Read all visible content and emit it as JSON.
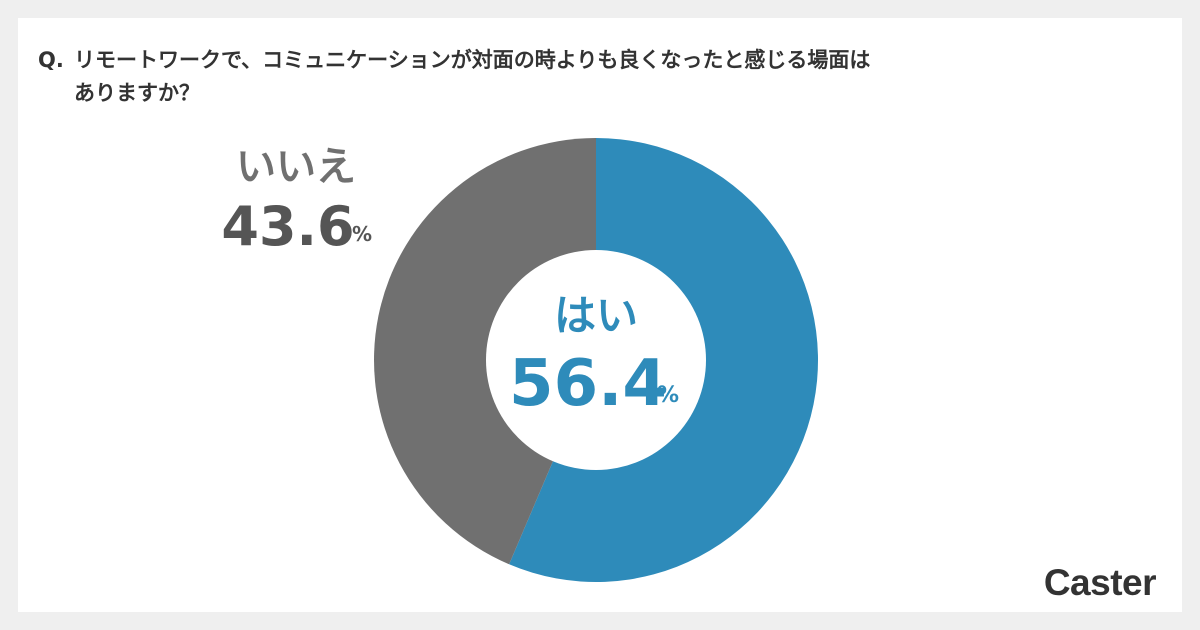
{
  "question": {
    "prefix": "Q.",
    "line1": "リモートワークで、コミュニケーションが対面の時よりも良くなったと感じる場面は",
    "line2": "ありますか？"
  },
  "chart_data": {
    "type": "pie",
    "title": "",
    "labels": [
      "はい",
      "いいえ"
    ],
    "values": [
      56.4,
      43.6
    ],
    "value_labels": [
      "56.4",
      "43.6"
    ],
    "unit": "%",
    "colors": [
      "#2e8bba",
      "#707070"
    ],
    "donut": true
  },
  "brand": {
    "logo_text": "Caster"
  }
}
